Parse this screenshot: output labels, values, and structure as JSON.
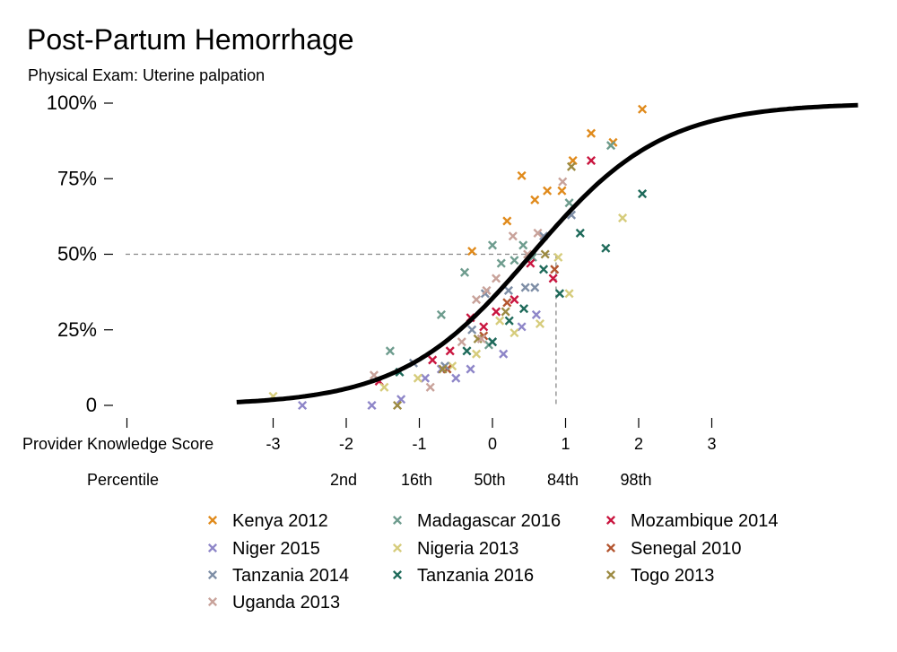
{
  "chart_data": {
    "type": "scatter",
    "title": "Post-Partum Hemorrhage",
    "subtitle": "Physical Exam: Uterine palpation",
    "xlabel": "Provider Knowledge Score",
    "percentile_label": "Percentile",
    "xlim": [
      -4,
      5
    ],
    "ylim": [
      0,
      1
    ],
    "x_ticks": [
      -3,
      -2,
      -1,
      0,
      1,
      2,
      3
    ],
    "x_tick_labels": [
      "-3",
      "-2",
      "-1",
      "0",
      "1",
      "2",
      "3"
    ],
    "y_ticks": [
      0,
      0.25,
      0.5,
      0.75,
      1
    ],
    "y_tick_labels": [
      "0",
      "25%",
      "50%",
      "75%",
      "100%"
    ],
    "percentiles": [
      {
        "x": -2,
        "label": "2nd"
      },
      {
        "x": -1,
        "label": "16th"
      },
      {
        "x": 0,
        "label": "50th"
      },
      {
        "x": 1,
        "label": "84th"
      },
      {
        "x": 2,
        "label": "98th"
      }
    ],
    "reference": {
      "x": 0.87,
      "y": 0.5
    },
    "fit_curve": {
      "type": "logistic",
      "intercept": -0.6,
      "slope": 1.12,
      "x_range": [
        -3.5,
        5.0
      ],
      "color": "#000000"
    },
    "legend_position": "bottom",
    "series": [
      {
        "name": "Kenya 2012",
        "color": "#E08A1B",
        "points": [
          [
            -0.28,
            0.51
          ],
          [
            0.2,
            0.61
          ],
          [
            0.4,
            0.76
          ],
          [
            0.58,
            0.68
          ],
          [
            0.75,
            0.71
          ],
          [
            0.95,
            0.71
          ],
          [
            1.1,
            0.81
          ],
          [
            1.35,
            0.9
          ],
          [
            1.65,
            0.87
          ],
          [
            2.05,
            0.98
          ]
        ]
      },
      {
        "name": "Madagascar 2016",
        "color": "#6E9C8E",
        "points": [
          [
            -1.4,
            0.18
          ],
          [
            -0.7,
            0.3
          ],
          [
            -0.38,
            0.44
          ],
          [
            0.0,
            0.53
          ],
          [
            0.12,
            0.47
          ],
          [
            0.3,
            0.48
          ],
          [
            0.42,
            0.53
          ],
          [
            0.55,
            0.49
          ],
          [
            1.05,
            0.67
          ],
          [
            1.62,
            0.86
          ],
          [
            -0.05,
            0.2
          ]
        ]
      },
      {
        "name": "Mozambique 2014",
        "color": "#C9153F",
        "points": [
          [
            -1.55,
            0.08
          ],
          [
            -0.82,
            0.15
          ],
          [
            -0.58,
            0.18
          ],
          [
            -0.3,
            0.29
          ],
          [
            -0.12,
            0.26
          ],
          [
            0.05,
            0.31
          ],
          [
            0.3,
            0.35
          ],
          [
            0.52,
            0.47
          ],
          [
            0.83,
            0.42
          ],
          [
            1.35,
            0.81
          ]
        ]
      },
      {
        "name": "Niger 2015",
        "color": "#8E86C8",
        "points": [
          [
            -2.6,
            0.0
          ],
          [
            -1.65,
            0.0
          ],
          [
            -1.25,
            0.02
          ],
          [
            -0.92,
            0.09
          ],
          [
            -0.7,
            0.12
          ],
          [
            -0.5,
            0.09
          ],
          [
            -0.3,
            0.12
          ],
          [
            0.15,
            0.17
          ],
          [
            0.4,
            0.26
          ],
          [
            0.6,
            0.3
          ]
        ]
      },
      {
        "name": "Nigeria 2013",
        "color": "#D6CC7C",
        "points": [
          [
            -3.0,
            0.03
          ],
          [
            -1.48,
            0.06
          ],
          [
            -1.02,
            0.09
          ],
          [
            -0.55,
            0.13
          ],
          [
            -0.22,
            0.17
          ],
          [
            0.1,
            0.28
          ],
          [
            0.3,
            0.24
          ],
          [
            0.65,
            0.27
          ],
          [
            1.05,
            0.37
          ],
          [
            1.78,
            0.62
          ],
          [
            0.9,
            0.49
          ]
        ]
      },
      {
        "name": "Senegal 2010",
        "color": "#B3552F",
        "points": [
          [
            -0.62,
            0.12
          ],
          [
            -0.12,
            0.23
          ],
          [
            0.2,
            0.34
          ],
          [
            0.85,
            0.45
          ]
        ]
      },
      {
        "name": "Tanzania 2014",
        "color": "#7E8EA6",
        "points": [
          [
            -1.08,
            0.14
          ],
          [
            -0.65,
            0.13
          ],
          [
            -0.28,
            0.25
          ],
          [
            0.0,
            0.21
          ],
          [
            0.22,
            0.38
          ],
          [
            0.45,
            0.39
          ],
          [
            0.58,
            0.39
          ],
          [
            0.7,
            0.56
          ],
          [
            1.08,
            0.63
          ],
          [
            -0.1,
            0.37
          ]
        ]
      },
      {
        "name": "Tanzania 2016",
        "color": "#1E6A5A",
        "points": [
          [
            -1.27,
            0.11
          ],
          [
            -0.35,
            0.18
          ],
          [
            0.0,
            0.21
          ],
          [
            0.23,
            0.28
          ],
          [
            0.43,
            0.32
          ],
          [
            0.7,
            0.45
          ],
          [
            0.92,
            0.37
          ],
          [
            1.2,
            0.57
          ],
          [
            1.55,
            0.52
          ],
          [
            2.05,
            0.7
          ]
        ]
      },
      {
        "name": "Togo 2013",
        "color": "#9C8A42",
        "points": [
          [
            -1.3,
            0.0
          ],
          [
            -0.68,
            0.12
          ],
          [
            -0.2,
            0.22
          ],
          [
            0.18,
            0.31
          ],
          [
            0.72,
            0.5
          ],
          [
            1.08,
            0.79
          ]
        ]
      },
      {
        "name": "Uganda 2013",
        "color": "#C8A29A",
        "points": [
          [
            -1.62,
            0.1
          ],
          [
            -0.85,
            0.06
          ],
          [
            -0.42,
            0.21
          ],
          [
            -0.22,
            0.35
          ],
          [
            -0.08,
            0.38
          ],
          [
            0.05,
            0.42
          ],
          [
            0.28,
            0.56
          ],
          [
            0.48,
            0.5
          ],
          [
            0.62,
            0.57
          ],
          [
            0.96,
            0.74
          ],
          [
            -0.15,
            0.22
          ]
        ]
      }
    ]
  }
}
